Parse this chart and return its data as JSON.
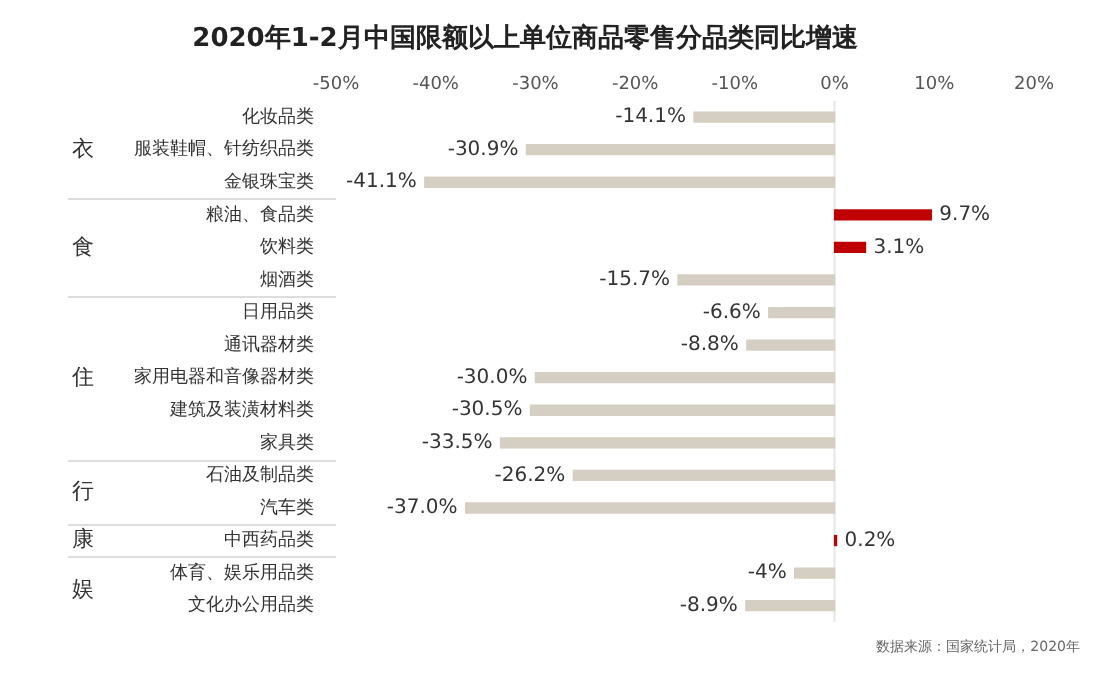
{
  "chart_data": {
    "type": "bar",
    "orientation": "horizontal",
    "title": "2020年1-2月中国限额以上单位商品零售分品类同比增速",
    "categories": [
      "化妆品类",
      "服装鞋帽、针纺织品类",
      "金银珠宝类",
      "粮油、食品类",
      "饮料类",
      "烟酒类",
      "日用品类",
      "通讯器材类",
      "家用电器和音像器材类",
      "建筑及装潢材料类",
      "家具类",
      "石油及制品类",
      "汽车类",
      "中西药品类",
      "体育、娱乐用品类",
      "文化办公用品类"
    ],
    "values": [
      -14.1,
      -30.9,
      -41.1,
      9.7,
      3.1,
      -15.7,
      -6.6,
      -8.8,
      -30.0,
      -30.5,
      -33.5,
      -26.2,
      -37.0,
      0.2,
      -4,
      -8.9
    ],
    "colors": [
      "#d4cfc2",
      "#d4cfc2",
      "#d4cfc2",
      "#c00000",
      "#c00000",
      "#d4cfc2",
      "#d4cfc2",
      "#d4cfc2",
      "#d4cfc2",
      "#d4cfc2",
      "#d4cfc2",
      "#d4cfc2",
      "#d4cfc2",
      "#c00000",
      "#d4cfc2",
      "#d4cfc2"
    ],
    "value_labels": [
      "-14.1%",
      "-30.9%",
      "-41.1%",
      "9.7%",
      "3.1%",
      "-15.7%",
      "-6.6%",
      "-8.8%",
      "-30.0%",
      "-30.5%",
      "-33.5%",
      "-26.2%",
      "-37.0%",
      "0.2%",
      "-4%",
      "-8.9%"
    ],
    "xlim": [
      -50,
      20
    ],
    "xticks": [
      {
        "value": -50,
        "label": "-50%"
      },
      {
        "value": -40,
        "label": "-40%"
      },
      {
        "value": -30,
        "label": "-30%"
      },
      {
        "value": -20,
        "label": "-20%"
      },
      {
        "value": -10,
        "label": "-10%"
      },
      {
        "value": 0,
        "label": "0%"
      },
      {
        "value": 10,
        "label": "10%"
      },
      {
        "value": 20,
        "label": "20%"
      }
    ],
    "grid": false,
    "legend": false,
    "ref_lines": [
      {
        "axis": "x",
        "value": 0,
        "color": "#e6e6e6"
      }
    ],
    "annotations": [
      "衣",
      "食",
      "住",
      "行",
      "康",
      "娱",
      "数据来源：国家统计局，2020年"
    ]
  }
}
